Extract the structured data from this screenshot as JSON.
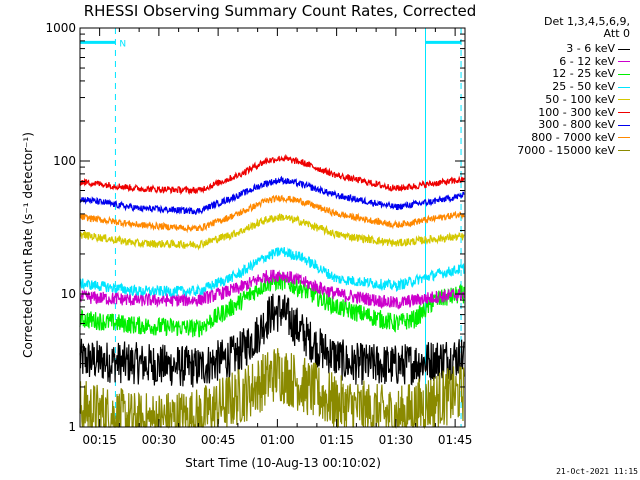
{
  "chart_data": {
    "type": "line",
    "title": "RHESSI Observing Summary Count Rates, Corrected",
    "xlabel": "Start Time (10-Aug-13 00:10:02)",
    "ylabel": "Corrected Count Rate (s⁻¹ detector⁻¹)",
    "x_tick_labels": [
      "00:15",
      "00:30",
      "00:45",
      "01:00",
      "01:15",
      "01:30",
      "01:45"
    ],
    "x_tick_minutes": [
      15,
      30,
      45,
      60,
      75,
      90,
      105
    ],
    "xlim_minutes": [
      10.03,
      107.5
    ],
    "y_scale": "log",
    "ylim": [
      1,
      1000
    ],
    "y_tick_labels": [
      "1",
      "10",
      "100",
      "1000"
    ],
    "legend_header": [
      "Det 1,3,4,5,6,9,",
      "Att 0"
    ],
    "legend_position": "top-right",
    "series": [
      {
        "name": "3 - 6 keV",
        "color": "#000000",
        "points": [
          [
            10,
            3.2
          ],
          [
            25,
            3.0
          ],
          [
            40,
            2.8
          ],
          [
            50,
            3.5
          ],
          [
            55,
            5.0
          ],
          [
            58,
            7.0
          ],
          [
            61,
            7.5
          ],
          [
            64,
            6.0
          ],
          [
            70,
            4.0
          ],
          [
            78,
            3.0
          ],
          [
            90,
            2.9
          ],
          [
            100,
            3.2
          ],
          [
            107,
            3.4
          ]
        ],
        "noise": 0.16
      },
      {
        "name": "6 - 12 keV",
        "color": "#cc00cc",
        "points": [
          [
            10,
            9.5
          ],
          [
            25,
            9.0
          ],
          [
            40,
            9.0
          ],
          [
            50,
            11.0
          ],
          [
            57,
            13.5
          ],
          [
            61,
            14.0
          ],
          [
            66,
            12.5
          ],
          [
            75,
            10.0
          ],
          [
            90,
            8.5
          ],
          [
            100,
            9.5
          ],
          [
            107,
            10.0
          ]
        ],
        "noise": 0.05
      },
      {
        "name": "12 - 25 keV",
        "color": "#00ee00",
        "points": [
          [
            10,
            6.5
          ],
          [
            25,
            5.8
          ],
          [
            40,
            5.5
          ],
          [
            50,
            8.5
          ],
          [
            57,
            12.0
          ],
          [
            61,
            12.5
          ],
          [
            66,
            11.0
          ],
          [
            75,
            8.0
          ],
          [
            90,
            6.0
          ],
          [
            95,
            6.5
          ],
          [
            100,
            9.0
          ],
          [
            107,
            10.0
          ]
        ],
        "noise": 0.07
      },
      {
        "name": "25 - 50 keV",
        "color": "#00e5ff",
        "points": [
          [
            10,
            12.0
          ],
          [
            25,
            10.5
          ],
          [
            40,
            10.5
          ],
          [
            50,
            14.0
          ],
          [
            57,
            19.0
          ],
          [
            61,
            21.0
          ],
          [
            66,
            19.0
          ],
          [
            75,
            13.0
          ],
          [
            90,
            11.5
          ],
          [
            100,
            14.0
          ],
          [
            107,
            15.5
          ]
        ],
        "noise": 0.04
      },
      {
        "name": "50 - 100 keV",
        "color": "#d4c800",
        "points": [
          [
            10,
            28.0
          ],
          [
            25,
            24.0
          ],
          [
            40,
            23.5
          ],
          [
            50,
            29.0
          ],
          [
            57,
            36.0
          ],
          [
            61,
            38.0
          ],
          [
            66,
            35.0
          ],
          [
            75,
            28.0
          ],
          [
            90,
            24.0
          ],
          [
            100,
            26.0
          ],
          [
            107,
            27.0
          ]
        ],
        "noise": 0.03
      },
      {
        "name": "100 - 300 keV",
        "color": "#ee0000",
        "points": [
          [
            10,
            70.0
          ],
          [
            25,
            62.0
          ],
          [
            40,
            60.0
          ],
          [
            50,
            78.0
          ],
          [
            57,
            100.0
          ],
          [
            61,
            105.0
          ],
          [
            66,
            98.0
          ],
          [
            75,
            78.0
          ],
          [
            90,
            62.0
          ],
          [
            100,
            68.0
          ],
          [
            107,
            72.0
          ]
        ],
        "noise": 0.025
      },
      {
        "name": "300 - 800 keV",
        "color": "#0000ee",
        "points": [
          [
            10,
            52.0
          ],
          [
            25,
            44.0
          ],
          [
            40,
            42.0
          ],
          [
            50,
            55.0
          ],
          [
            57,
            68.0
          ],
          [
            61,
            72.0
          ],
          [
            66,
            67.0
          ],
          [
            75,
            55.0
          ],
          [
            90,
            45.0
          ],
          [
            100,
            50.0
          ],
          [
            107,
            55.0
          ]
        ],
        "noise": 0.025
      },
      {
        "name": "800 - 7000 keV",
        "color": "#ff8800",
        "points": [
          [
            10,
            38.0
          ],
          [
            25,
            33.0
          ],
          [
            40,
            31.0
          ],
          [
            50,
            40.0
          ],
          [
            57,
            50.0
          ],
          [
            61,
            53.0
          ],
          [
            66,
            50.0
          ],
          [
            75,
            40.0
          ],
          [
            90,
            33.0
          ],
          [
            100,
            37.0
          ],
          [
            107,
            40.0
          ]
        ],
        "noise": 0.025
      },
      {
        "name": "7000 - 15000 keV",
        "color": "#8a8a00",
        "points": [
          [
            10,
            1.4
          ],
          [
            25,
            1.1
          ],
          [
            40,
            1.2
          ],
          [
            52,
            1.8
          ],
          [
            60,
            2.6
          ],
          [
            66,
            2.1
          ],
          [
            75,
            1.5
          ],
          [
            90,
            1.2
          ],
          [
            100,
            1.6
          ],
          [
            107,
            1.8
          ]
        ],
        "noise": 0.22
      }
    ],
    "attenuator_bars": [
      {
        "label": "N",
        "segments": [
          [
            10.03,
            19.0
          ],
          [
            97.5,
            106.5
          ]
        ],
        "value": 780
      }
    ],
    "dashed_lines_minutes": [
      19.0,
      106.5
    ],
    "solid_lines_minutes": [
      97.5
    ]
  },
  "footer": {
    "timestamp": "21-Oct-2021 11:15"
  }
}
